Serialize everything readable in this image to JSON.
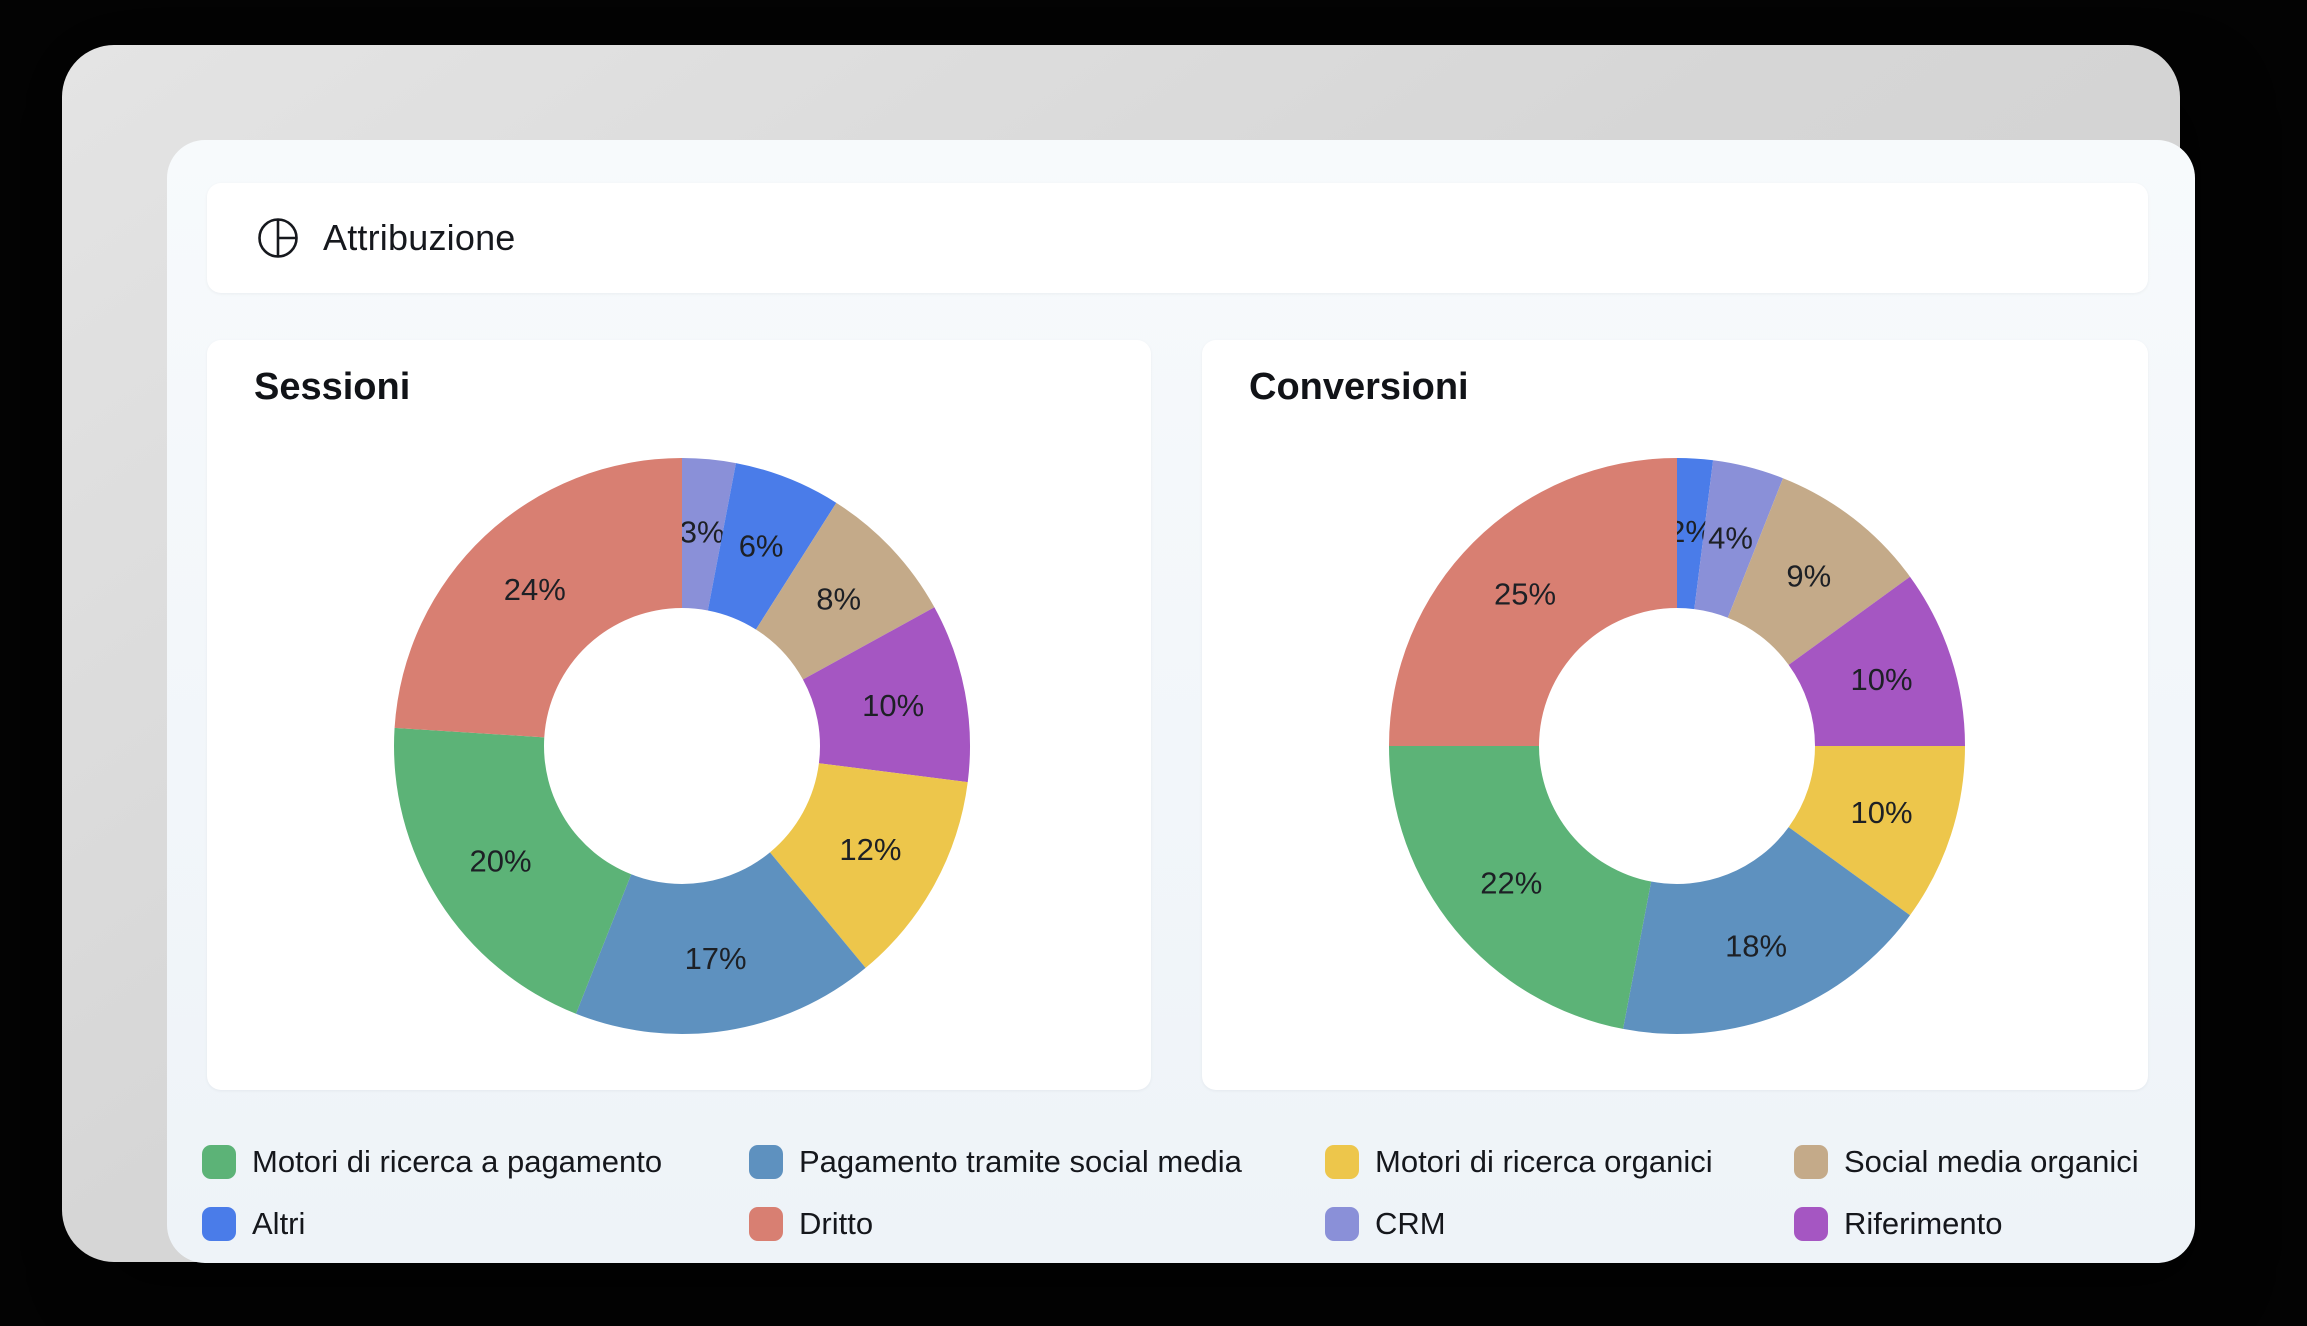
{
  "header": {
    "title": "Attribuzione",
    "icon": "pie-chart-icon"
  },
  "legend": [
    {
      "label": "Motori di ricerca a pagamento",
      "color": "#5CB377"
    },
    {
      "label": "Pagamento tramite social media",
      "color": "#5E91BF"
    },
    {
      "label": "Motori di ricerca organici",
      "color": "#EDC64B"
    },
    {
      "label": "Social media organici",
      "color": "#C4AA89"
    },
    {
      "label": "Altri",
      "color": "#4A7CE9"
    },
    {
      "label": "Dritto",
      "color": "#D87F72"
    },
    {
      "label": "CRM",
      "color": "#8A90D8"
    },
    {
      "label": "Riferimento",
      "color": "#A556C2"
    }
  ],
  "chart_data": [
    {
      "type": "donut",
      "title": "Sessioni",
      "unit": "%",
      "start_angle_deg": 0,
      "direction": "clockwise",
      "segments": [
        {
          "label": "CRM",
          "value": 3,
          "color": "#8A90D8"
        },
        {
          "label": "Altri",
          "value": 6,
          "color": "#4A7CE9"
        },
        {
          "label": "Social media organici",
          "value": 8,
          "color": "#C4AA89"
        },
        {
          "label": "Riferimento",
          "value": 10,
          "color": "#A556C2"
        },
        {
          "label": "Motori di ricerca organici",
          "value": 12,
          "color": "#EDC64B"
        },
        {
          "label": "Pagamento tramite social media",
          "value": 17,
          "color": "#5E91BF"
        },
        {
          "label": "Motori di ricerca a pagamento",
          "value": 20,
          "color": "#5CB377"
        },
        {
          "label": "Dritto",
          "value": 24,
          "color": "#D87F72"
        }
      ]
    },
    {
      "type": "donut",
      "title": "Conversioni",
      "unit": "%",
      "start_angle_deg": 0,
      "direction": "clockwise",
      "segments": [
        {
          "label": "Altri",
          "value": 2,
          "color": "#4A7CE9"
        },
        {
          "label": "CRM",
          "value": 4,
          "color": "#8A90D8"
        },
        {
          "label": "Social media organici",
          "value": 9,
          "color": "#C4AA89"
        },
        {
          "label": "Riferimento",
          "value": 10,
          "color": "#A556C2"
        },
        {
          "label": "Motori di ricerca organici",
          "value": 10,
          "color": "#EDC64B"
        },
        {
          "label": "Pagamento tramite social media",
          "value": 18,
          "color": "#5E91BF"
        },
        {
          "label": "Motori di ricerca a pagamento",
          "value": 22,
          "color": "#5CB377"
        },
        {
          "label": "Dritto",
          "value": 25,
          "color": "#D87F72"
        }
      ]
    }
  ]
}
